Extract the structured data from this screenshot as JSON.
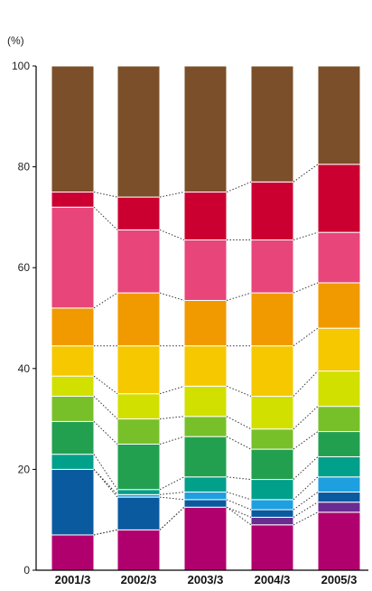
{
  "chart_data": {
    "type": "bar",
    "stacked": true,
    "unit_label": "(%)",
    "categories": [
      "2001/3",
      "2002/3",
      "2003/3",
      "2004/3",
      "2005/3"
    ],
    "ylim": [
      0,
      100
    ],
    "yticks": [
      "0",
      "20",
      "40",
      "60",
      "80",
      "100"
    ],
    "connector_lines": "dotted",
    "series": [
      {
        "color": "#b0006e",
        "values": [
          7,
          8,
          12.5,
          9,
          11.5
        ]
      },
      {
        "color": "#6a2c91",
        "values": [
          0,
          0,
          0,
          1.5,
          2
        ]
      },
      {
        "color": "#0a5aa0",
        "values": [
          13,
          6.5,
          1.5,
          1.5,
          2
        ]
      },
      {
        "color": "#1e9fe0",
        "values": [
          0,
          0.5,
          1.5,
          2,
          3
        ]
      },
      {
        "color": "#00a08a",
        "values": [
          3,
          1,
          3,
          4,
          4
        ]
      },
      {
        "color": "#22a050",
        "values": [
          6.5,
          9,
          8,
          6,
          5
        ]
      },
      {
        "color": "#78c02a",
        "values": [
          5,
          5,
          4,
          4,
          5
        ]
      },
      {
        "color": "#d2e000",
        "values": [
          4,
          5,
          6,
          6.5,
          7
        ]
      },
      {
        "color": "#f5c800",
        "values": [
          6,
          9.5,
          8,
          10,
          8.5
        ]
      },
      {
        "color": "#f09a00",
        "values": [
          7.5,
          10.5,
          9,
          10.5,
          9
        ]
      },
      {
        "color": "#e8457a",
        "values": [
          20,
          12.5,
          12,
          10.5,
          10
        ]
      },
      {
        "color": "#cc0030",
        "values": [
          3,
          6.5,
          9.5,
          11.5,
          13.5
        ]
      },
      {
        "color": "#7b4f2a",
        "values": [
          25,
          26,
          25,
          23,
          19.5
        ]
      }
    ]
  }
}
